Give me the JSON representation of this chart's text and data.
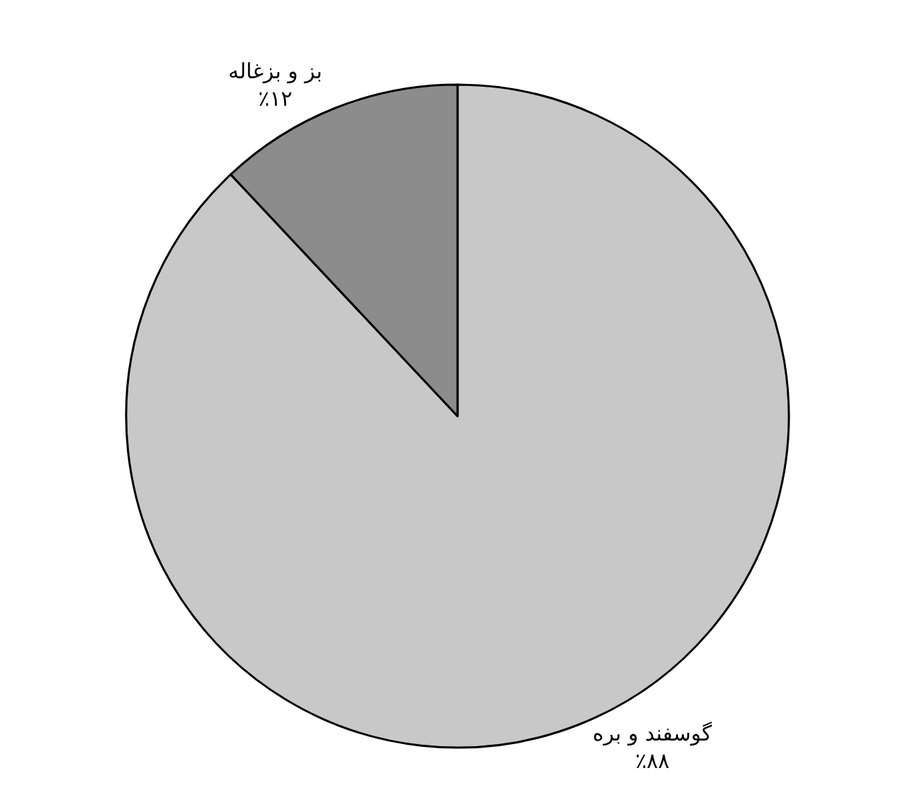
{
  "chart_data": {
    "type": "pie",
    "categories": [
      "گوسفند و بره",
      "بز و بزغاله"
    ],
    "values": [
      88,
      12
    ],
    "value_labels": [
      "٪۸۸",
      "٪۱۲"
    ],
    "colors": [
      "#c8c8c8",
      "#8c8c8c"
    ]
  }
}
